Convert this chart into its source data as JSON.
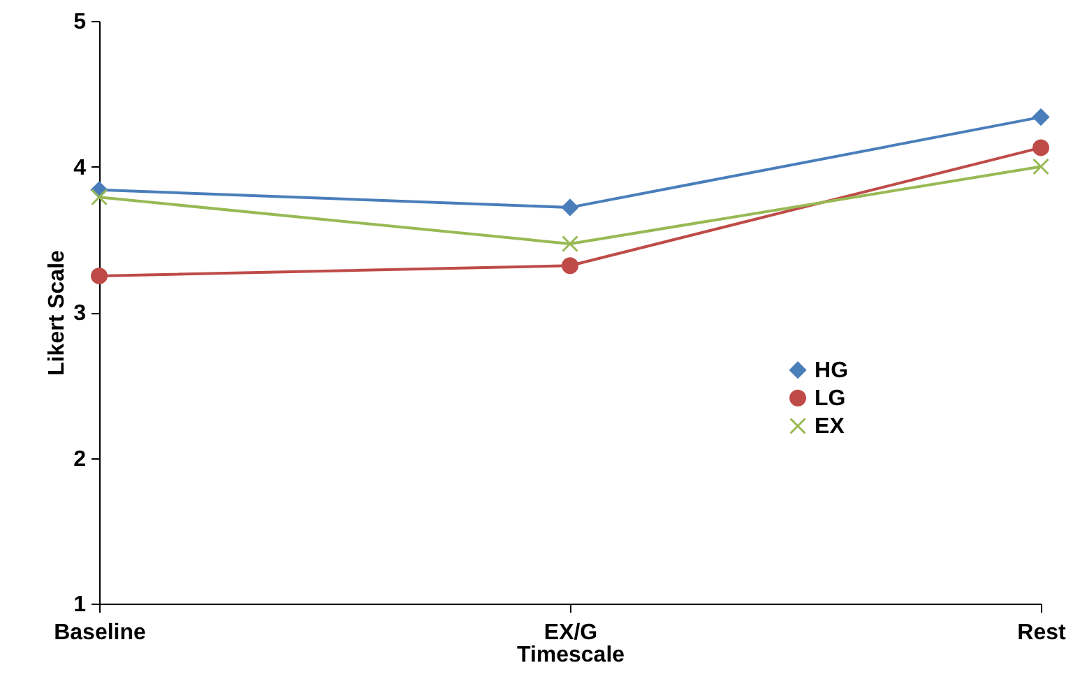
{
  "chart_data": {
    "type": "line",
    "xlabel": "Timescale",
    "ylabel": "Likert Scale",
    "categories": [
      "Baseline",
      "EX/G",
      "Rest"
    ],
    "ylim": [
      1,
      5
    ],
    "yticks": [
      1,
      2,
      3,
      4,
      5
    ],
    "grid": false,
    "legend": "right",
    "series": [
      {
        "name": "HG",
        "color": "#4a7ebb",
        "marker": "diamond",
        "values": [
          3.84,
          3.72,
          4.34
        ]
      },
      {
        "name": "LG",
        "color": "#be4b48",
        "marker": "circle",
        "values": [
          3.25,
          3.32,
          4.13
        ]
      },
      {
        "name": "EX",
        "color": "#98b954",
        "marker": "cross",
        "values": [
          3.79,
          3.47,
          4.0
        ]
      }
    ]
  }
}
